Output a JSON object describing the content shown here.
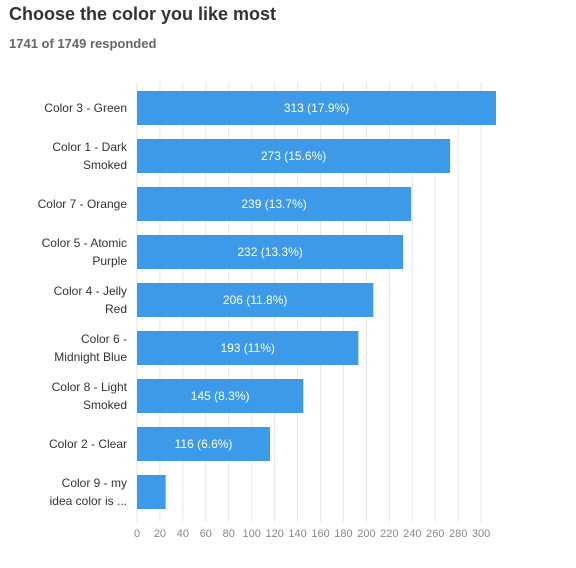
{
  "title": "Choose the color you like most",
  "subtitle": "1741 of 1749 responded",
  "colors": {
    "bar": "#3d9ae8",
    "bar_text": "#ffffff",
    "grid": "#e6e6e6"
  },
  "chart_data": {
    "type": "bar",
    "orientation": "horizontal",
    "categories": [
      [
        "Color 3 - Green"
      ],
      [
        "Color 1 - Dark",
        "Smoked"
      ],
      [
        "Color 7 - Orange"
      ],
      [
        "Color 5 - Atomic",
        "Purple"
      ],
      [
        "Color 4 - Jelly",
        "Red"
      ],
      [
        "Color 6 -",
        "Midnight Blue"
      ],
      [
        "Color 8 - Light",
        "Smoked"
      ],
      [
        "Color 2 - Clear"
      ],
      [
        "Color 9 - my",
        "idea color is ..."
      ]
    ],
    "values": [
      313,
      273,
      239,
      232,
      206,
      193,
      145,
      116,
      25
    ],
    "data_labels": [
      "313 (17.9%)",
      "273 (15.6%)",
      "239 (13.7%)",
      "232 (13.3%)",
      "206 (11.8%)",
      "193 (11%)",
      "145 (8.3%)",
      "116 (6.6%)",
      ""
    ],
    "x_ticks": [
      0,
      20,
      40,
      60,
      80,
      100,
      120,
      140,
      160,
      180,
      200,
      220,
      240,
      260,
      280,
      300
    ],
    "xlim": [
      0,
      313
    ],
    "grid": true
  }
}
